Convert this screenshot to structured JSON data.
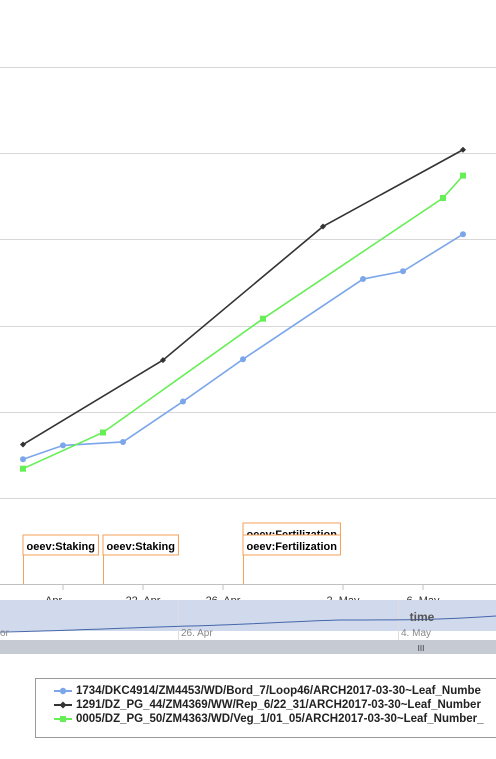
{
  "chart_data": {
    "type": "line",
    "x_axis_title": "time",
    "x_tick_labels": [
      "Apr",
      "22. Apr",
      "26. Apr",
      "2. May",
      "6. May"
    ],
    "navigator_tick_labels": [
      "or",
      "26. Apr",
      "4. May"
    ],
    "grid": true,
    "legend_position": "bottom",
    "series": [
      {
        "name": "1734/DKC4914/ZM4453/WD/Bord_7/Loop46/ARCH2017-03-30~Leaf_Numbe",
        "color": "#7ca6ea",
        "marker": "circle",
        "points": [
          {
            "x": "2017-04-16",
            "y": 2.25
          },
          {
            "x": "2017-04-18",
            "y": 3.05
          },
          {
            "x": "2017-04-21",
            "y": 3.25
          },
          {
            "x": "2017-04-24",
            "y": 5.6
          },
          {
            "x": "2017-04-27",
            "y": 8.05
          },
          {
            "x": "2017-05-03",
            "y": 12.7
          },
          {
            "x": "2017-05-05",
            "y": 13.15
          },
          {
            "x": "2017-05-08",
            "y": 15.3
          }
        ]
      },
      {
        "name": "1291/DZ_PG_44/ZM4369/WW/Rep_6/22_31/ARCH2017-03-30~Leaf_Number",
        "color": "#333333",
        "marker": "diamond",
        "points": [
          {
            "x": "2017-04-16",
            "y": 3.1
          },
          {
            "x": "2017-04-23",
            "y": 8.0
          },
          {
            "x": "2017-05-01",
            "y": 15.75
          },
          {
            "x": "2017-05-08",
            "y": 20.2
          }
        ]
      },
      {
        "name": "0005/DZ_PG_50/ZM4363/WD/Veg_1/01_05/ARCH2017-03-30~Leaf_Number_",
        "color": "#66ee55",
        "marker": "square",
        "points": [
          {
            "x": "2017-04-16",
            "y": 1.7
          },
          {
            "x": "2017-04-20",
            "y": 3.8
          },
          {
            "x": "2017-04-28",
            "y": 10.4
          },
          {
            "x": "2017-05-07",
            "y": 17.4
          },
          {
            "x": "2017-05-08",
            "y": 18.7
          }
        ]
      }
    ],
    "annotations": [
      {
        "text": "oeev:Staking",
        "x": "2017-04-16"
      },
      {
        "text": "oeev:Staking",
        "x": "2017-04-20"
      },
      {
        "text": "oeev:Fertilization",
        "x": "2017-04-27"
      },
      {
        "text": "oeev:Fertilization",
        "x": "2017-04-27"
      }
    ]
  },
  "legend": {
    "items": [
      "1734/DKC4914/ZM4453/WD/Bord_7/Loop46/ARCH2017-03-30~Leaf_Numbe",
      "1291/DZ_PG_44/ZM4369/WW/Rep_6/22_31/ARCH2017-03-30~Leaf_Number",
      "0005/DZ_PG_50/ZM4363/WD/Veg_1/01_05/ARCH2017-03-30~Leaf_Number_"
    ]
  },
  "navigator": {
    "scrollbar_grip": "III"
  }
}
